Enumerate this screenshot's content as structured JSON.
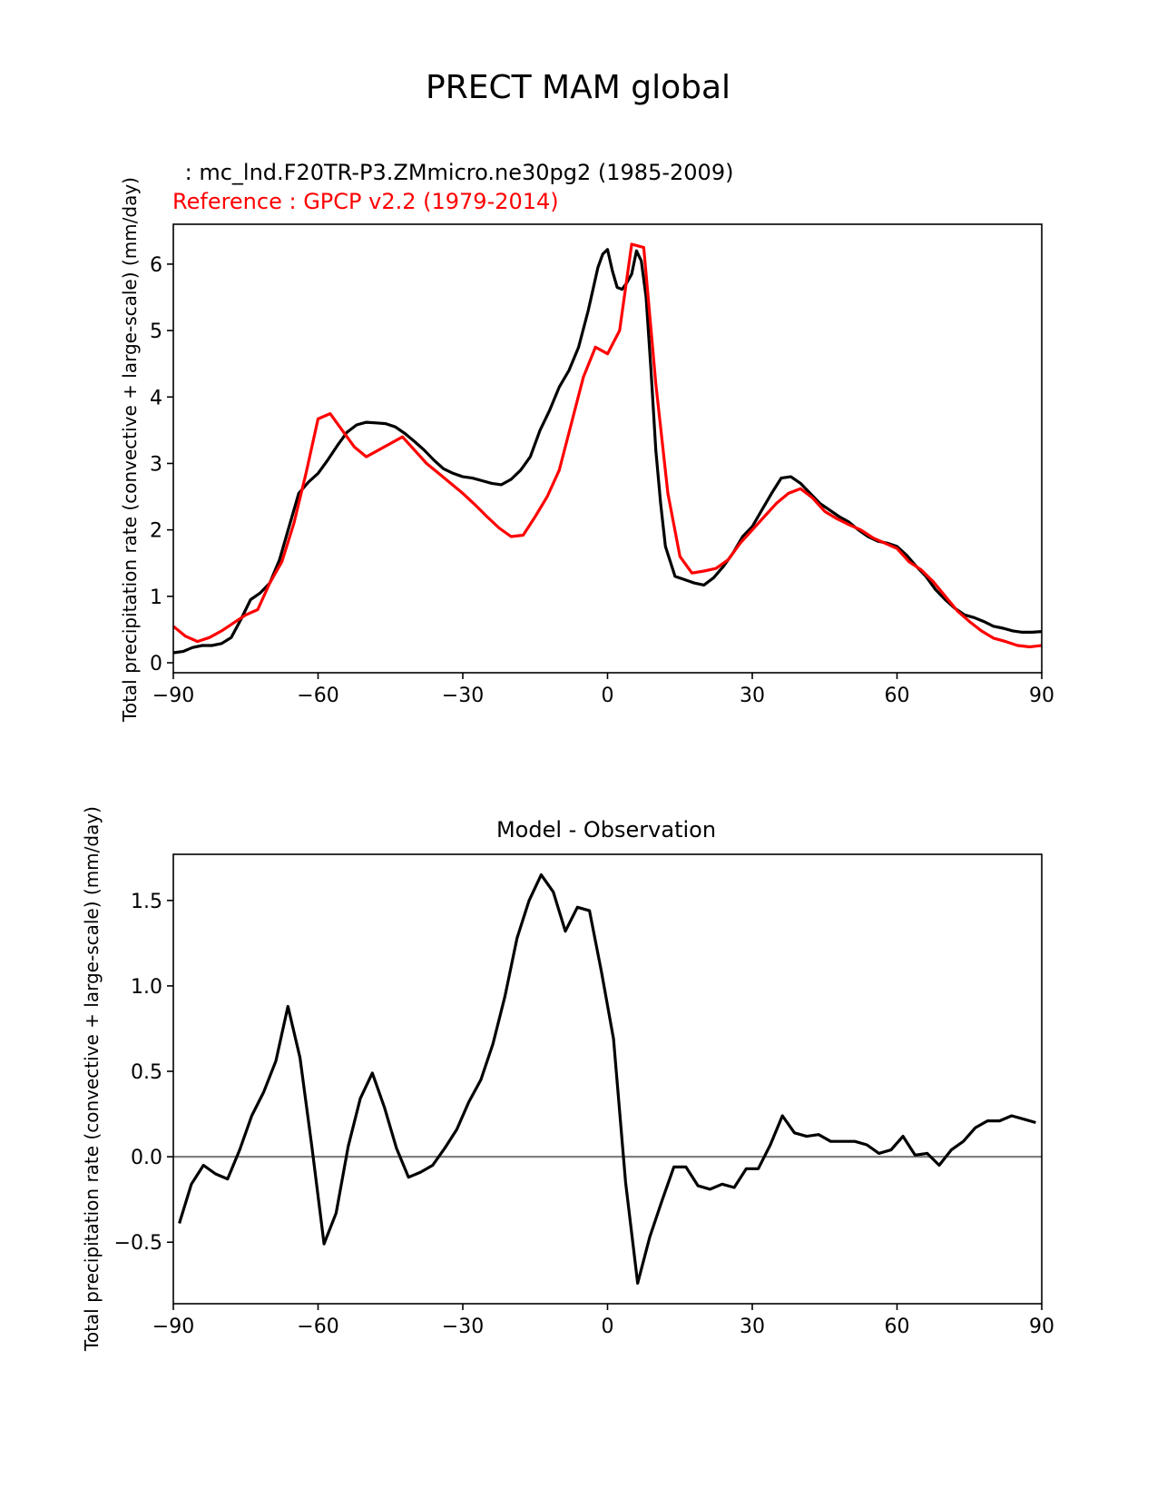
{
  "figure": {
    "suptitle": "PRECT MAM global"
  },
  "chart_data": [
    {
      "type": "line",
      "title": "",
      "test_label": " : mc_lnd.F20TR-P3.ZMmicro.ne30pg2 (1985-2009)",
      "ref_label": "Reference : GPCP v2.2 (1979-2014)",
      "xlabel": "",
      "ylabel": "Total precipitation rate (convective + large-scale) (mm/day)",
      "xlim": [
        -90,
        90
      ],
      "ylim": [
        -0.15,
        6.6
      ],
      "xticks": [
        -90,
        -60,
        -30,
        0,
        30,
        60,
        90
      ],
      "xtick_labels": [
        "−90",
        "−60",
        "−30",
        "0",
        "30",
        "60",
        "90"
      ],
      "yticks": [
        0,
        1,
        2,
        3,
        4,
        5,
        6
      ],
      "ytick_labels": [
        "0",
        "1",
        "2",
        "3",
        "4",
        "5",
        "6"
      ],
      "grid": false,
      "series": [
        {
          "role": "test",
          "color": "#000000",
          "points": [
            [
              -90,
              0.15
            ],
            [
              -88,
              0.17
            ],
            [
              -86,
              0.23
            ],
            [
              -84,
              0.26
            ],
            [
              -82,
              0.26
            ],
            [
              -80,
              0.29
            ],
            [
              -78,
              0.38
            ],
            [
              -76,
              0.65
            ],
            [
              -74,
              0.95
            ],
            [
              -72,
              1.05
            ],
            [
              -70,
              1.2
            ],
            [
              -68,
              1.55
            ],
            [
              -66,
              2.05
            ],
            [
              -64,
              2.55
            ],
            [
              -62,
              2.72
            ],
            [
              -60,
              2.85
            ],
            [
              -58,
              3.05
            ],
            [
              -56,
              3.27
            ],
            [
              -54,
              3.47
            ],
            [
              -52,
              3.58
            ],
            [
              -50,
              3.62
            ],
            [
              -48,
              3.61
            ],
            [
              -46,
              3.6
            ],
            [
              -44,
              3.55
            ],
            [
              -42,
              3.45
            ],
            [
              -40,
              3.33
            ],
            [
              -38,
              3.2
            ],
            [
              -36,
              3.05
            ],
            [
              -34,
              2.92
            ],
            [
              -32,
              2.85
            ],
            [
              -30,
              2.8
            ],
            [
              -28,
              2.78
            ],
            [
              -26,
              2.74
            ],
            [
              -24,
              2.7
            ],
            [
              -22,
              2.68
            ],
            [
              -20,
              2.76
            ],
            [
              -18,
              2.9
            ],
            [
              -16,
              3.1
            ],
            [
              -14,
              3.5
            ],
            [
              -12,
              3.8
            ],
            [
              -10,
              4.15
            ],
            [
              -8,
              4.4
            ],
            [
              -6,
              4.75
            ],
            [
              -4,
              5.3
            ],
            [
              -2,
              5.95
            ],
            [
              -1,
              6.15
            ],
            [
              0,
              6.22
            ],
            [
              1,
              5.9
            ],
            [
              2,
              5.65
            ],
            [
              3,
              5.62
            ],
            [
              4,
              5.72
            ],
            [
              5,
              5.85
            ],
            [
              6,
              6.2
            ],
            [
              7,
              6.05
            ],
            [
              8,
              5.5
            ],
            [
              9,
              4.4
            ],
            [
              10,
              3.2
            ],
            [
              11,
              2.4
            ],
            [
              12,
              1.75
            ],
            [
              14,
              1.3
            ],
            [
              16,
              1.25
            ],
            [
              18,
              1.2
            ],
            [
              20,
              1.17
            ],
            [
              22,
              1.28
            ],
            [
              24,
              1.45
            ],
            [
              26,
              1.65
            ],
            [
              28,
              1.9
            ],
            [
              30,
              2.05
            ],
            [
              32,
              2.3
            ],
            [
              34,
              2.55
            ],
            [
              36,
              2.78
            ],
            [
              38,
              2.8
            ],
            [
              40,
              2.7
            ],
            [
              42,
              2.55
            ],
            [
              44,
              2.4
            ],
            [
              46,
              2.3
            ],
            [
              48,
              2.2
            ],
            [
              50,
              2.12
            ],
            [
              52,
              2.0
            ],
            [
              54,
              1.9
            ],
            [
              56,
              1.83
            ],
            [
              58,
              1.8
            ],
            [
              60,
              1.75
            ],
            [
              62,
              1.62
            ],
            [
              64,
              1.45
            ],
            [
              66,
              1.3
            ],
            [
              68,
              1.1
            ],
            [
              70,
              0.95
            ],
            [
              72,
              0.82
            ],
            [
              74,
              0.72
            ],
            [
              76,
              0.68
            ],
            [
              78,
              0.62
            ],
            [
              80,
              0.55
            ],
            [
              82,
              0.52
            ],
            [
              84,
              0.48
            ],
            [
              86,
              0.46
            ],
            [
              88,
              0.46
            ],
            [
              90,
              0.47
            ]
          ]
        },
        {
          "role": "reference",
          "color": "#ff0000",
          "points": [
            [
              -90,
              0.55
            ],
            [
              -87.5,
              0.4
            ],
            [
              -85,
              0.32
            ],
            [
              -82.5,
              0.38
            ],
            [
              -80,
              0.48
            ],
            [
              -77.5,
              0.6
            ],
            [
              -75,
              0.72
            ],
            [
              -72.5,
              0.8
            ],
            [
              -70,
              1.2
            ],
            [
              -67.5,
              1.52
            ],
            [
              -65,
              2.1
            ],
            [
              -62.5,
              2.85
            ],
            [
              -60,
              3.67
            ],
            [
              -57.5,
              3.75
            ],
            [
              -55,
              3.5
            ],
            [
              -52.5,
              3.25
            ],
            [
              -50,
              3.1
            ],
            [
              -47.5,
              3.2
            ],
            [
              -45,
              3.3
            ],
            [
              -42.5,
              3.4
            ],
            [
              -40,
              3.2
            ],
            [
              -37.5,
              3.0
            ],
            [
              -35,
              2.85
            ],
            [
              -32.5,
              2.7
            ],
            [
              -30,
              2.55
            ],
            [
              -27.5,
              2.38
            ],
            [
              -25,
              2.2
            ],
            [
              -22.5,
              2.03
            ],
            [
              -20,
              1.9
            ],
            [
              -17.5,
              1.92
            ],
            [
              -15,
              2.2
            ],
            [
              -12.5,
              2.5
            ],
            [
              -10,
              2.9
            ],
            [
              -7.5,
              3.6
            ],
            [
              -5,
              4.3
            ],
            [
              -2.5,
              4.75
            ],
            [
              0,
              4.65
            ],
            [
              2.5,
              5.0
            ],
            [
              5,
              6.3
            ],
            [
              7.5,
              6.25
            ],
            [
              10,
              4.2
            ],
            [
              12.5,
              2.55
            ],
            [
              15,
              1.6
            ],
            [
              17.5,
              1.35
            ],
            [
              20,
              1.38
            ],
            [
              22.5,
              1.42
            ],
            [
              25,
              1.55
            ],
            [
              27.5,
              1.8
            ],
            [
              30,
              2.0
            ],
            [
              32.5,
              2.2
            ],
            [
              35,
              2.4
            ],
            [
              37.5,
              2.55
            ],
            [
              40,
              2.62
            ],
            [
              42.5,
              2.48
            ],
            [
              45,
              2.28
            ],
            [
              47.5,
              2.17
            ],
            [
              50,
              2.08
            ],
            [
              52.5,
              2.0
            ],
            [
              55,
              1.88
            ],
            [
              57.5,
              1.8
            ],
            [
              60,
              1.72
            ],
            [
              62.5,
              1.52
            ],
            [
              65,
              1.4
            ],
            [
              67.5,
              1.22
            ],
            [
              70,
              1.0
            ],
            [
              72.5,
              0.78
            ],
            [
              75,
              0.62
            ],
            [
              77.5,
              0.48
            ],
            [
              80,
              0.37
            ],
            [
              82.5,
              0.32
            ],
            [
              85,
              0.26
            ],
            [
              87.5,
              0.24
            ],
            [
              90,
              0.26
            ]
          ]
        }
      ]
    },
    {
      "type": "line",
      "title": "Model - Observation",
      "xlabel": "",
      "ylabel": "Total precipitation rate (convective + large-scale) (mm/day)",
      "xlim": [
        -90,
        90
      ],
      "ylim": [
        -0.86,
        1.77
      ],
      "xticks": [
        -90,
        -60,
        -30,
        0,
        30,
        60,
        90
      ],
      "xtick_labels": [
        "−90",
        "−60",
        "−30",
        "0",
        "30",
        "60",
        "90"
      ],
      "yticks": [
        -0.5,
        0.0,
        0.5,
        1.0,
        1.5
      ],
      "ytick_labels": [
        "−0.5",
        "0.0",
        "0.5",
        "1.0",
        "1.5"
      ],
      "zero_line_color": "#808080",
      "grid": false,
      "series": [
        {
          "role": "difference",
          "color": "#000000",
          "points": [
            [
              -88.75,
              -0.39
            ],
            [
              -86.25,
              -0.16
            ],
            [
              -83.75,
              -0.05
            ],
            [
              -81.25,
              -0.1
            ],
            [
              -78.75,
              -0.13
            ],
            [
              -76.25,
              0.04
            ],
            [
              -73.75,
              0.24
            ],
            [
              -71.25,
              0.38
            ],
            [
              -68.75,
              0.56
            ],
            [
              -66.25,
              0.88
            ],
            [
              -63.75,
              0.58
            ],
            [
              -61.25,
              0.05
            ],
            [
              -58.75,
              -0.51
            ],
            [
              -56.25,
              -0.33
            ],
            [
              -53.75,
              0.06
            ],
            [
              -51.25,
              0.34
            ],
            [
              -48.75,
              0.49
            ],
            [
              -46.25,
              0.29
            ],
            [
              -43.75,
              0.05
            ],
            [
              -41.25,
              -0.12
            ],
            [
              -38.75,
              -0.09
            ],
            [
              -36.25,
              -0.05
            ],
            [
              -33.75,
              0.05
            ],
            [
              -31.25,
              0.16
            ],
            [
              -28.75,
              0.32
            ],
            [
              -26.25,
              0.45
            ],
            [
              -23.75,
              0.66
            ],
            [
              -21.25,
              0.94
            ],
            [
              -18.75,
              1.28
            ],
            [
              -16.25,
              1.5
            ],
            [
              -13.75,
              1.65
            ],
            [
              -11.25,
              1.55
            ],
            [
              -8.75,
              1.32
            ],
            [
              -6.25,
              1.46
            ],
            [
              -3.75,
              1.44
            ],
            [
              -1.25,
              1.08
            ],
            [
              1.25,
              0.69
            ],
            [
              3.75,
              -0.15
            ],
            [
              6.25,
              -0.74
            ],
            [
              8.75,
              -0.47
            ],
            [
              11.25,
              -0.26
            ],
            [
              13.75,
              -0.06
            ],
            [
              16.25,
              -0.06
            ],
            [
              18.75,
              -0.17
            ],
            [
              21.25,
              -0.19
            ],
            [
              23.75,
              -0.16
            ],
            [
              26.25,
              -0.18
            ],
            [
              28.75,
              -0.07
            ],
            [
              31.25,
              -0.07
            ],
            [
              33.75,
              0.07
            ],
            [
              36.25,
              0.24
            ],
            [
              38.75,
              0.14
            ],
            [
              41.25,
              0.12
            ],
            [
              43.75,
              0.13
            ],
            [
              46.25,
              0.09
            ],
            [
              48.75,
              0.09
            ],
            [
              51.25,
              0.09
            ],
            [
              53.75,
              0.07
            ],
            [
              56.25,
              0.02
            ],
            [
              58.75,
              0.04
            ],
            [
              61.25,
              0.12
            ],
            [
              63.75,
              0.01
            ],
            [
              66.25,
              0.02
            ],
            [
              68.75,
              -0.05
            ],
            [
              71.25,
              0.04
            ],
            [
              73.75,
              0.09
            ],
            [
              76.25,
              0.17
            ],
            [
              78.75,
              0.21
            ],
            [
              81.25,
              0.21
            ],
            [
              83.75,
              0.24
            ],
            [
              86.25,
              0.22
            ],
            [
              88.75,
              0.2
            ]
          ]
        }
      ]
    }
  ]
}
